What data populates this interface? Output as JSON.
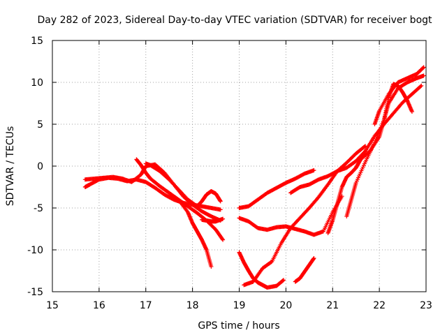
{
  "chart_data": {
    "type": "scatter",
    "title": "Day 282 of 2023, Sidereal Day-to-day VTEC variation (SDTVAR) for receiver bogt",
    "xlabel": "GPS time / hours",
    "ylabel": "SDTVAR / TECUs",
    "xlim": [
      15,
      23
    ],
    "ylim": [
      -15,
      15
    ],
    "xticks": [
      "15",
      "16",
      "17",
      "18",
      "19",
      "20",
      "21",
      "22",
      "23"
    ],
    "yticks": [
      "15",
      "10",
      "5",
      "0",
      "-5",
      "-10",
      "-15"
    ],
    "grid": true,
    "marker": "plus",
    "color": "#ff0000",
    "series": [
      {
        "x": [
          15.7,
          15.8,
          16.0,
          16.2,
          16.4,
          16.6,
          16.8,
          17.0,
          17.2,
          17.4,
          17.6,
          17.8,
          18.0,
          18.2,
          18.4,
          18.6
        ],
        "y": [
          -2.5,
          -2.2,
          -1.6,
          -1.4,
          -1.5,
          -1.8,
          -1.6,
          -1.9,
          -2.6,
          -3.4,
          -4.0,
          -4.4,
          -4.6,
          -4.8,
          -5.0,
          -5.2
        ]
      },
      {
        "x": [
          15.7,
          15.9,
          16.1,
          16.3,
          16.5,
          16.7,
          16.9,
          17.0,
          17.2,
          17.4,
          17.6,
          17.8,
          18.0,
          18.2,
          18.4,
          18.6
        ],
        "y": [
          -1.6,
          -1.5,
          -1.4,
          -1.3,
          -1.5,
          -1.9,
          -1.0,
          0.0,
          0.2,
          -0.8,
          -2.2,
          -3.6,
          -4.6,
          -5.4,
          -6.0,
          -6.5
        ]
      },
      {
        "x": [
          16.8,
          16.9,
          17.0,
          17.1,
          17.3,
          17.5,
          17.7,
          17.9,
          18.1,
          18.3,
          18.5,
          18.65
        ],
        "y": [
          0.8,
          0.1,
          -0.8,
          -1.5,
          -2.4,
          -3.2,
          -4.0,
          -4.8,
          -5.6,
          -6.5,
          -7.6,
          -8.8
        ]
      },
      {
        "x": [
          17.0,
          17.1,
          17.3,
          17.5,
          17.7,
          17.9,
          18.1,
          18.2,
          18.3,
          18.4,
          18.5,
          18.6
        ],
        "y": [
          0.3,
          0.1,
          -0.6,
          -1.6,
          -2.8,
          -4.0,
          -4.8,
          -4.2,
          -3.4,
          -3.0,
          -3.3,
          -4.2
        ]
      },
      {
        "x": [
          17.5,
          17.7,
          17.9,
          18.0,
          18.1,
          18.2,
          18.3,
          18.4
        ],
        "y": [
          -3.7,
          -4.0,
          -5.5,
          -6.8,
          -7.8,
          -8.8,
          -10.0,
          -12.0
        ]
      },
      {
        "x": [
          18.2,
          18.3,
          18.4,
          18.5,
          18.65
        ],
        "y": [
          -6.4,
          -6.5,
          -6.6,
          -6.6,
          -6.3
        ]
      },
      {
        "x": [
          19.0,
          19.2,
          19.4,
          19.6,
          19.8,
          20.0,
          20.2,
          20.4,
          20.6
        ],
        "y": [
          -5.0,
          -4.8,
          -4.0,
          -3.2,
          -2.6,
          -2.0,
          -1.5,
          -0.9,
          -0.5
        ]
      },
      {
        "x": [
          19.0,
          19.2,
          19.4,
          19.6,
          19.8,
          20.0,
          20.2,
          20.4,
          20.6,
          20.8,
          21.0,
          21.2
        ],
        "y": [
          -6.2,
          -6.6,
          -7.4,
          -7.6,
          -7.3,
          -7.2,
          -7.5,
          -7.8,
          -8.2,
          -7.8,
          -5.5,
          -3.6
        ]
      },
      {
        "x": [
          19.0,
          19.1,
          19.2,
          19.3,
          19.4,
          19.5,
          19.6,
          19.8,
          19.95
        ],
        "y": [
          -10.3,
          -11.5,
          -12.5,
          -13.4,
          -13.9,
          -14.2,
          -14.5,
          -14.3,
          -13.6
        ]
      },
      {
        "x": [
          19.1,
          19.3,
          19.5,
          19.7,
          19.9,
          20.1,
          20.3,
          20.5,
          20.7,
          20.9,
          21.1,
          21.3,
          21.5,
          21.7
        ],
        "y": [
          -14.2,
          -13.8,
          -12.2,
          -11.4,
          -9.2,
          -7.4,
          -6.2,
          -5.0,
          -3.7,
          -2.2,
          -0.6,
          0.4,
          1.5,
          2.4
        ]
      },
      {
        "x": [
          20.1,
          20.3,
          20.5,
          20.7,
          20.9,
          21.1,
          21.3,
          21.5,
          21.7,
          21.9,
          22.1,
          22.3,
          22.5,
          22.7,
          22.9
        ],
        "y": [
          -3.2,
          -2.5,
          -2.2,
          -1.6,
          -1.2,
          -0.6,
          -0.2,
          0.6,
          1.8,
          3.6,
          5.0,
          6.3,
          7.6,
          8.6,
          9.6
        ]
      },
      {
        "x": [
          20.2,
          20.3,
          20.4,
          20.5,
          20.6
        ],
        "y": [
          -13.8,
          -13.4,
          -12.6,
          -11.8,
          -11.0
        ]
      },
      {
        "x": [
          20.9,
          21.0,
          21.1,
          21.2,
          21.3,
          21.4,
          21.5,
          21.6,
          21.8,
          22.0,
          22.1,
          22.2,
          22.4,
          22.6,
          22.8,
          22.95
        ],
        "y": [
          -8.0,
          -6.5,
          -4.5,
          -2.5,
          -1.3,
          -0.8,
          -0.2,
          0.8,
          1.8,
          3.5,
          5.5,
          7.5,
          9.3,
          10.0,
          10.5,
          10.8
        ]
      },
      {
        "x": [
          21.3,
          21.4,
          21.5,
          21.7,
          21.9,
          22.1,
          22.2,
          22.3,
          22.4,
          22.5,
          22.6,
          22.7
        ],
        "y": [
          -6.0,
          -4.0,
          -2.0,
          0.5,
          2.8,
          5.5,
          8.2,
          9.8,
          9.6,
          8.8,
          7.8,
          6.5
        ]
      },
      {
        "x": [
          21.9,
          22.0,
          22.2,
          22.4,
          22.6,
          22.8,
          22.95
        ],
        "y": [
          5.0,
          6.6,
          8.6,
          10.0,
          10.5,
          11.0,
          11.8
        ]
      }
    ]
  }
}
